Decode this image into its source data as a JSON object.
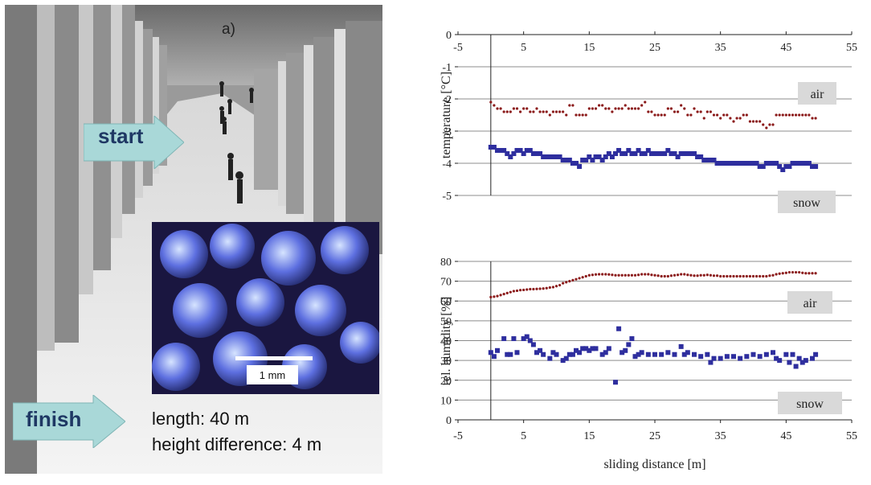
{
  "photo": {
    "panel_label": "a)",
    "start_label": "start",
    "finish_label": "finish",
    "length_text": "length: 40 m",
    "height_text": "height difference: 4 m",
    "scale_bar_label": "1 mm",
    "colors": {
      "arrow_fill": "#a9d8d8",
      "arrow_text": "#1f3864",
      "crystal": "#3a4fd0"
    }
  },
  "chart_data": [
    {
      "type": "scatter",
      "ylabel": "temperature [°C]",
      "xlabel": "",
      "xlim": [
        -5,
        55
      ],
      "ylim": [
        -5,
        0
      ],
      "xticks": [
        "-5",
        "5",
        "15",
        "25",
        "35",
        "45",
        "55"
      ],
      "yticks": [
        "0",
        "-1",
        "-2",
        "-3",
        "-4",
        "-5"
      ],
      "x_axis_position": "top",
      "grid": true,
      "series": [
        {
          "name": "air",
          "color": "#8b1a1a",
          "marker": "dot",
          "x": [
            0,
            0.5,
            1,
            1.5,
            2,
            2.5,
            3,
            3.5,
            4,
            4.5,
            5,
            5.5,
            6,
            6.5,
            7,
            7.5,
            8,
            8.5,
            9,
            9.5,
            10,
            10.5,
            11,
            11.5,
            12,
            12.5,
            13,
            13.5,
            14,
            14.5,
            15,
            15.5,
            16,
            16.5,
            17,
            17.5,
            18,
            18.5,
            19,
            19.5,
            20,
            20.5,
            21,
            21.5,
            22,
            22.5,
            23,
            23.5,
            24,
            24.5,
            25,
            25.5,
            26,
            26.5,
            27,
            27.5,
            28,
            28.5,
            29,
            29.5,
            30,
            30.5,
            31,
            31.5,
            32,
            32.5,
            33,
            33.5,
            34,
            34.5,
            35,
            35.5,
            36,
            36.5,
            37,
            37.5,
            38,
            38.5,
            39,
            39.5,
            40,
            40.5,
            41,
            41.5,
            42,
            42.5,
            43,
            43.5,
            44,
            44.5,
            45,
            45.5,
            46,
            46.5,
            47,
            47.5,
            48,
            48.5,
            49,
            49.5
          ],
          "values": [
            -2.1,
            -2.2,
            -2.3,
            -2.3,
            -2.4,
            -2.4,
            -2.4,
            -2.3,
            -2.3,
            -2.4,
            -2.3,
            -2.3,
            -2.4,
            -2.4,
            -2.3,
            -2.4,
            -2.4,
            -2.4,
            -2.5,
            -2.4,
            -2.4,
            -2.4,
            -2.4,
            -2.5,
            -2.2,
            -2.2,
            -2.5,
            -2.5,
            -2.5,
            -2.5,
            -2.3,
            -2.3,
            -2.3,
            -2.2,
            -2.2,
            -2.3,
            -2.3,
            -2.4,
            -2.3,
            -2.3,
            -2.3,
            -2.2,
            -2.3,
            -2.3,
            -2.3,
            -2.3,
            -2.2,
            -2.1,
            -2.4,
            -2.4,
            -2.5,
            -2.5,
            -2.5,
            -2.5,
            -2.3,
            -2.3,
            -2.4,
            -2.4,
            -2.2,
            -2.3,
            -2.5,
            -2.5,
            -2.3,
            -2.4,
            -2.4,
            -2.6,
            -2.4,
            -2.4,
            -2.5,
            -2.5,
            -2.6,
            -2.5,
            -2.5,
            -2.6,
            -2.7,
            -2.6,
            -2.6,
            -2.5,
            -2.5,
            -2.7,
            -2.7,
            -2.7,
            -2.7,
            -2.8,
            -2.9,
            -2.8,
            -2.8,
            -2.5,
            -2.5,
            -2.5,
            -2.5,
            -2.5,
            -2.5,
            -2.5,
            -2.5,
            -2.5,
            -2.5,
            -2.5,
            -2.6,
            -2.6
          ]
        },
        {
          "name": "snow",
          "color": "#2e2e9e",
          "marker": "square",
          "x": [
            0,
            0.5,
            1,
            1.5,
            2,
            2.5,
            3,
            3.5,
            4,
            4.5,
            5,
            5.5,
            6,
            6.5,
            7,
            7.5,
            8,
            8.5,
            9,
            9.5,
            10,
            10.5,
            11,
            11.5,
            12,
            12.5,
            13,
            13.5,
            14,
            14.5,
            15,
            15.5,
            16,
            16.5,
            17,
            17.5,
            18,
            18.5,
            19,
            19.5,
            20,
            20.5,
            21,
            21.5,
            22,
            22.5,
            23,
            23.5,
            24,
            24.5,
            25,
            25.5,
            26,
            26.5,
            27,
            27.5,
            28,
            28.5,
            29,
            29.5,
            30,
            30.5,
            31,
            31.5,
            32,
            32.5,
            33,
            33.5,
            34,
            34.5,
            35,
            35.5,
            36,
            36.5,
            37,
            37.5,
            38,
            38.5,
            39,
            39.5,
            40,
            40.5,
            41,
            41.5,
            42,
            42.5,
            43,
            43.5,
            44,
            44.5,
            45,
            45.5,
            46,
            46.5,
            47,
            47.5,
            48,
            48.5,
            49,
            49.5
          ],
          "values": [
            -3.5,
            -3.5,
            -3.6,
            -3.6,
            -3.6,
            -3.7,
            -3.8,
            -3.7,
            -3.6,
            -3.6,
            -3.7,
            -3.6,
            -3.6,
            -3.7,
            -3.7,
            -3.7,
            -3.8,
            -3.8,
            -3.8,
            -3.8,
            -3.8,
            -3.8,
            -3.9,
            -3.9,
            -3.9,
            -4.0,
            -4.0,
            -4.1,
            -3.9,
            -3.9,
            -3.8,
            -3.9,
            -3.8,
            -3.8,
            -3.9,
            -3.8,
            -3.7,
            -3.8,
            -3.7,
            -3.6,
            -3.7,
            -3.7,
            -3.6,
            -3.7,
            -3.7,
            -3.6,
            -3.7,
            -3.7,
            -3.6,
            -3.7,
            -3.7,
            -3.7,
            -3.7,
            -3.7,
            -3.6,
            -3.7,
            -3.7,
            -3.8,
            -3.7,
            -3.7,
            -3.7,
            -3.7,
            -3.7,
            -3.8,
            -3.8,
            -3.9,
            -3.9,
            -3.9,
            -3.9,
            -4.0,
            -4.0,
            -4.0,
            -4.0,
            -4.0,
            -4.0,
            -4.0,
            -4.0,
            -4.0,
            -4.0,
            -4.0,
            -4.0,
            -4.0,
            -4.1,
            -4.1,
            -4.0,
            -4.0,
            -4.0,
            -4.0,
            -4.1,
            -4.2,
            -4.1,
            -4.1,
            -4.0,
            -4.0,
            -4.0,
            -4.0,
            -4.0,
            -4.0,
            -4.1,
            -4.1
          ]
        }
      ],
      "annotations": [
        "air",
        "snow"
      ]
    },
    {
      "type": "scatter",
      "ylabel": "rel. humidity [%]",
      "xlabel": "sliding distance [m]",
      "xlim": [
        -5,
        55
      ],
      "ylim": [
        0,
        80
      ],
      "xticks": [
        "-5",
        "5",
        "15",
        "25",
        "35",
        "45",
        "55"
      ],
      "yticks": [
        "0",
        "10",
        "20",
        "30",
        "40",
        "50",
        "60",
        "70",
        "80"
      ],
      "x_axis_position": "bottom",
      "grid": true,
      "series": [
        {
          "name": "air",
          "color": "#8b1a1a",
          "marker": "dot",
          "x": [
            0,
            0.5,
            1,
            1.5,
            2,
            2.5,
            3,
            3.5,
            4,
            4.5,
            5,
            5.5,
            6,
            6.5,
            7,
            7.5,
            8,
            8.5,
            9,
            9.5,
            10,
            10.5,
            11,
            11.5,
            12,
            12.5,
            13,
            13.5,
            14,
            14.5,
            15,
            15.5,
            16,
            16.5,
            17,
            17.5,
            18,
            18.5,
            19,
            19.5,
            20,
            20.5,
            21,
            21.5,
            22,
            22.5,
            23,
            23.5,
            24,
            24.5,
            25,
            25.5,
            26,
            26.5,
            27,
            27.5,
            28,
            28.5,
            29,
            29.5,
            30,
            30.5,
            31,
            31.5,
            32,
            32.5,
            33,
            33.5,
            34,
            34.5,
            35,
            35.5,
            36,
            36.5,
            37,
            37.5,
            38,
            38.5,
            39,
            39.5,
            40,
            40.5,
            41,
            41.5,
            42,
            42.5,
            43,
            43.5,
            44,
            44.5,
            45,
            45.5,
            46,
            46.5,
            47,
            47.5,
            48,
            48.5,
            49,
            49.5
          ],
          "values": [
            62.0,
            62.2,
            62.5,
            63.0,
            63.5,
            64.0,
            64.5,
            65.0,
            65.2,
            65.5,
            65.6,
            65.8,
            66.0,
            66.0,
            66.1,
            66.2,
            66.3,
            66.5,
            66.8,
            67.0,
            67.5,
            68.0,
            69.0,
            69.5,
            70.0,
            70.5,
            71.0,
            71.5,
            72.0,
            72.5,
            73.0,
            73.2,
            73.4,
            73.5,
            73.5,
            73.5,
            73.4,
            73.2,
            73.0,
            73.0,
            73.0,
            73.0,
            73.0,
            73.0,
            73.0,
            73.2,
            73.5,
            73.5,
            73.5,
            73.2,
            73.0,
            72.8,
            72.5,
            72.5,
            72.5,
            72.8,
            73.0,
            73.2,
            73.5,
            73.5,
            73.2,
            73.0,
            72.8,
            72.8,
            73.0,
            73.0,
            73.2,
            73.0,
            72.8,
            72.8,
            72.5,
            72.5,
            72.5,
            72.5,
            72.5,
            72.5,
            72.5,
            72.5,
            72.5,
            72.5,
            72.5,
            72.5,
            72.5,
            72.5,
            72.5,
            72.8,
            73.0,
            73.5,
            73.8,
            74.0,
            74.2,
            74.5,
            74.5,
            74.5,
            74.5,
            74.2,
            74.0,
            74.0,
            74.0,
            74.0
          ]
        },
        {
          "name": "snow",
          "color": "#2e2e9e",
          "marker": "square",
          "x": [
            0,
            0.5,
            1,
            2,
            2.5,
            3,
            3.5,
            4,
            5,
            5.5,
            6,
            6.5,
            7,
            7.5,
            8,
            9,
            9.5,
            10,
            11,
            11.5,
            12,
            12.5,
            13,
            13.5,
            14,
            14.5,
            15,
            15.5,
            16,
            17,
            17.5,
            18,
            19,
            19.5,
            20,
            20.5,
            21,
            21.5,
            22,
            22.5,
            23,
            24,
            25,
            26,
            27,
            28,
            29,
            29.5,
            30,
            31,
            32,
            33,
            33.5,
            34,
            35,
            36,
            37,
            38,
            39,
            40,
            41,
            42,
            43,
            43.5,
            44,
            45,
            45.5,
            46,
            46.5,
            47,
            47.5,
            48,
            49,
            49.5
          ],
          "values": [
            34,
            32,
            35,
            41,
            33,
            33,
            41,
            34,
            41,
            42,
            40,
            38,
            34,
            35,
            33,
            31,
            34,
            33,
            30,
            31,
            33,
            33,
            35,
            34,
            36,
            36,
            35,
            36,
            36,
            33,
            34,
            36,
            19,
            46,
            34,
            35,
            38,
            41,
            32,
            33,
            34,
            33,
            33,
            33,
            34,
            33,
            37,
            33,
            34,
            33,
            32,
            33,
            29,
            31,
            31,
            32,
            32,
            31,
            32,
            33,
            32,
            33,
            34,
            31,
            30,
            33,
            29,
            33,
            27,
            31,
            29,
            30,
            31,
            33
          ]
        }
      ],
      "annotations": [
        "air",
        "snow"
      ]
    }
  ]
}
